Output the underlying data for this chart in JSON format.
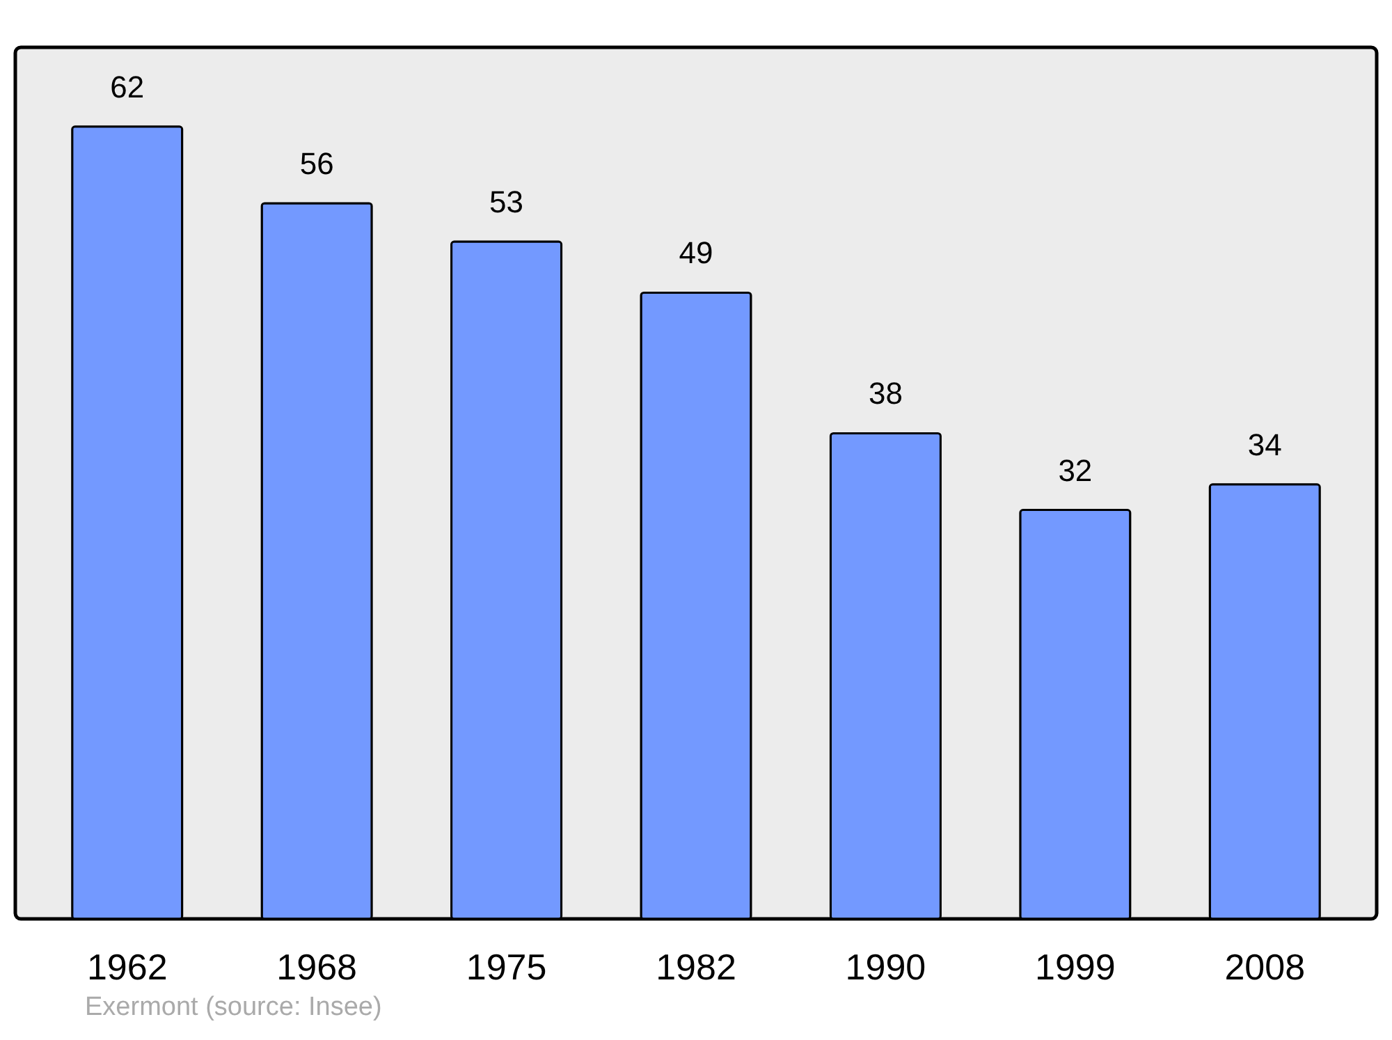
{
  "chart_data": {
    "type": "bar",
    "categories": [
      "1962",
      "1968",
      "1975",
      "1982",
      "1990",
      "1999",
      "2008"
    ],
    "values": [
      62,
      56,
      53,
      49,
      38,
      32,
      34
    ],
    "color": "#7399ff",
    "data_labels": true,
    "grid": false,
    "tick_labels": "x",
    "annotations": [
      "Exermont    (source: Insee)"
    ]
  }
}
